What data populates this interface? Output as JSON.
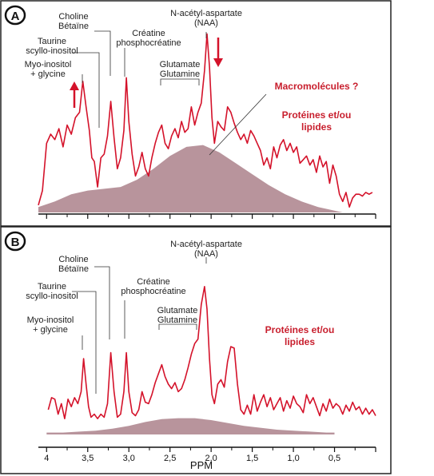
{
  "panels": [
    {
      "id": "A",
      "badge": "A",
      "peak_labels": {
        "choline": [
          "Choline",
          "Bétaïne"
        ],
        "taurine": [
          "Taurine",
          "scyllo-inositol"
        ],
        "creatine": [
          "Créatine",
          "phosphocréatine"
        ],
        "myo": [
          "Myo-inositol",
          "+ glycine"
        ],
        "glutamate": [
          "Glutamate",
          "Glutamine"
        ],
        "naa": [
          "N-acétyl-aspartate",
          "(NAA)"
        ]
      },
      "annotations": {
        "macromolecules": "Macromolécules ?",
        "proteins": [
          "Protéines et/ou",
          "lipides"
        ]
      },
      "arrows": [
        {
          "ppm": 3.6,
          "direction": "up"
        },
        {
          "ppm": 1.9,
          "direction": "down"
        }
      ]
    },
    {
      "id": "B",
      "badge": "B",
      "peak_labels": {
        "choline": [
          "Choline",
          "Bétaïne"
        ],
        "taurine": [
          "Taurine",
          "scyllo-inositol"
        ],
        "creatine": [
          "Créatine",
          "phosphocréatine"
        ],
        "myo": [
          "Myo-inositol",
          "+ glycine"
        ],
        "glutamate": [
          "Glutamate",
          "Glutamine"
        ],
        "naa": [
          "N-acétyl-aspartate",
          "(NAA)"
        ]
      },
      "annotations": {
        "proteins": [
          "Protéines et/ou",
          "lipides"
        ]
      }
    }
  ],
  "axis": {
    "label": "PPM",
    "ticks": [
      "4",
      "3,5",
      "3,0",
      "2,5",
      "2,0",
      "1,5",
      "1,0",
      "0,5"
    ]
  },
  "colors": {
    "spectrum": "#d4122a",
    "red_text": "#c81e2d",
    "fill": "#b8949c",
    "background": "#ffffff"
  },
  "chart_data": [
    {
      "type": "line",
      "panel": "A",
      "title": "",
      "xlabel": "PPM",
      "ylabel": "",
      "xlim": [
        4.1,
        0.0
      ],
      "ylim": [
        0,
        1
      ],
      "x_reversed": true,
      "series": [
        {
          "x": [
            4.1,
            4.05,
            4.0,
            3.95,
            3.9,
            3.85,
            3.8,
            3.75,
            3.7,
            3.65,
            3.6,
            3.56,
            3.52,
            3.48,
            3.45,
            3.42,
            3.38,
            3.34,
            3.3,
            3.26,
            3.22,
            3.18,
            3.14,
            3.1,
            3.06,
            3.03,
            3.0,
            2.96,
            2.92,
            2.88,
            2.84,
            2.8,
            2.76,
            2.72,
            2.68,
            2.64,
            2.6,
            2.56,
            2.52,
            2.48,
            2.44,
            2.4,
            2.36,
            2.32,
            2.28,
            2.24,
            2.2,
            2.16,
            2.12,
            2.08,
            2.05,
            2.02,
            1.99,
            1.96,
            1.92,
            1.88,
            1.84,
            1.8,
            1.76,
            1.72,
            1.68,
            1.64,
            1.6,
            1.56,
            1.52,
            1.48,
            1.44,
            1.4,
            1.36,
            1.32,
            1.28,
            1.24,
            1.2,
            1.16,
            1.12,
            1.08,
            1.04,
            1.0,
            0.96,
            0.92,
            0.88,
            0.84,
            0.8,
            0.76,
            0.72,
            0.68,
            0.64,
            0.6,
            0.56,
            0.52,
            0.48,
            0.44,
            0.4,
            0.36,
            0.32,
            0.28,
            0.24,
            0.2,
            0.16,
            0.12,
            0.08,
            0.04
          ],
          "values": [
            0.04,
            0.12,
            0.38,
            0.43,
            0.4,
            0.46,
            0.36,
            0.48,
            0.43,
            0.52,
            0.55,
            0.72,
            0.58,
            0.45,
            0.3,
            0.28,
            0.14,
            0.3,
            0.32,
            0.42,
            0.61,
            0.41,
            0.24,
            0.3,
            0.45,
            0.74,
            0.5,
            0.32,
            0.2,
            0.25,
            0.33,
            0.24,
            0.2,
            0.3,
            0.38,
            0.44,
            0.48,
            0.38,
            0.35,
            0.42,
            0.46,
            0.41,
            0.5,
            0.44,
            0.46,
            0.58,
            0.48,
            0.55,
            0.6,
            0.78,
            0.98,
            0.8,
            0.52,
            0.38,
            0.5,
            0.47,
            0.45,
            0.58,
            0.55,
            0.49,
            0.44,
            0.4,
            0.43,
            0.38,
            0.45,
            0.42,
            0.38,
            0.34,
            0.26,
            0.3,
            0.24,
            0.36,
            0.3,
            0.37,
            0.4,
            0.34,
            0.38,
            0.33,
            0.36,
            0.27,
            0.29,
            0.31,
            0.26,
            0.29,
            0.22,
            0.31,
            0.25,
            0.28,
            0.16,
            0.26,
            0.2,
            0.1,
            0.06,
            0.11,
            0.03,
            0.08,
            0.1,
            0.1,
            0.09,
            0.11,
            0.1,
            0.11
          ]
        }
      ],
      "baseline_fill": {
        "x": [
          4.1,
          3.9,
          3.7,
          3.5,
          3.3,
          3.1,
          2.9,
          2.7,
          2.5,
          2.3,
          2.1,
          1.9,
          1.7,
          1.5,
          1.3,
          1.1,
          0.9,
          0.7,
          0.5,
          0.4
        ],
        "values": [
          0.03,
          0.06,
          0.1,
          0.12,
          0.13,
          0.14,
          0.18,
          0.24,
          0.31,
          0.36,
          0.37,
          0.33,
          0.27,
          0.21,
          0.15,
          0.1,
          0.06,
          0.03,
          0.01,
          0.0
        ]
      }
    },
    {
      "type": "line",
      "panel": "B",
      "title": "",
      "xlabel": "PPM",
      "ylabel": "",
      "xlim": [
        4.1,
        0.0
      ],
      "ylim": [
        0,
        1
      ],
      "x_reversed": true,
      "series": [
        {
          "x": [
            3.98,
            3.94,
            3.9,
            3.86,
            3.82,
            3.78,
            3.74,
            3.7,
            3.66,
            3.62,
            3.58,
            3.55,
            3.52,
            3.49,
            3.46,
            3.42,
            3.38,
            3.34,
            3.3,
            3.26,
            3.22,
            3.18,
            3.14,
            3.1,
            3.06,
            3.03,
            3.0,
            2.96,
            2.92,
            2.88,
            2.84,
            2.8,
            2.76,
            2.72,
            2.68,
            2.64,
            2.6,
            2.56,
            2.52,
            2.48,
            2.44,
            2.4,
            2.36,
            2.32,
            2.28,
            2.24,
            2.2,
            2.16,
            2.12,
            2.08,
            2.05,
            2.02,
            1.99,
            1.96,
            1.92,
            1.88,
            1.84,
            1.8,
            1.76,
            1.72,
            1.68,
            1.64,
            1.6,
            1.56,
            1.52,
            1.48,
            1.44,
            1.4,
            1.36,
            1.32,
            1.28,
            1.24,
            1.2,
            1.16,
            1.12,
            1.08,
            1.04,
            1.0,
            0.96,
            0.92,
            0.88,
            0.84,
            0.8,
            0.76,
            0.72,
            0.68,
            0.64,
            0.6,
            0.56,
            0.52,
            0.48,
            0.44,
            0.4,
            0.36,
            0.32,
            0.28,
            0.24,
            0.2,
            0.16,
            0.12,
            0.08,
            0.04,
            0.0
          ],
          "values": [
            0.08,
            0.16,
            0.15,
            0.05,
            0.12,
            0.02,
            0.15,
            0.1,
            0.16,
            0.12,
            0.2,
            0.42,
            0.25,
            0.1,
            0.03,
            0.05,
            0.02,
            0.05,
            0.03,
            0.12,
            0.46,
            0.2,
            0.03,
            0.05,
            0.2,
            0.46,
            0.2,
            0.06,
            0.04,
            0.08,
            0.2,
            0.13,
            0.12,
            0.18,
            0.26,
            0.32,
            0.38,
            0.3,
            0.25,
            0.22,
            0.26,
            0.2,
            0.22,
            0.28,
            0.36,
            0.45,
            0.52,
            0.55,
            0.78,
            0.9,
            0.75,
            0.42,
            0.18,
            0.12,
            0.25,
            0.28,
            0.23,
            0.4,
            0.5,
            0.49,
            0.25,
            0.08,
            0.05,
            0.11,
            0.05,
            0.18,
            0.07,
            0.13,
            0.18,
            0.1,
            0.16,
            0.08,
            0.12,
            0.16,
            0.07,
            0.14,
            0.09,
            0.17,
            0.12,
            0.1,
            0.06,
            0.18,
            0.12,
            0.16,
            0.1,
            0.04,
            0.12,
            0.07,
            0.15,
            0.09,
            0.12,
            0.1,
            0.05,
            0.11,
            0.07,
            0.13,
            0.08,
            0.1,
            0.05,
            0.09,
            0.05,
            0.08,
            0.04
          ]
        }
      ],
      "baseline_fill": {
        "x": [
          4.0,
          3.8,
          3.6,
          3.4,
          3.2,
          3.0,
          2.8,
          2.6,
          2.4,
          2.2,
          2.0,
          1.8,
          1.6,
          1.4,
          1.2,
          1.0,
          0.8,
          0.6,
          0.5
        ],
        "values": [
          0.02,
          0.02,
          0.03,
          0.04,
          0.06,
          0.09,
          0.13,
          0.16,
          0.17,
          0.17,
          0.15,
          0.12,
          0.09,
          0.07,
          0.05,
          0.04,
          0.03,
          0.02,
          0.02
        ]
      }
    }
  ]
}
